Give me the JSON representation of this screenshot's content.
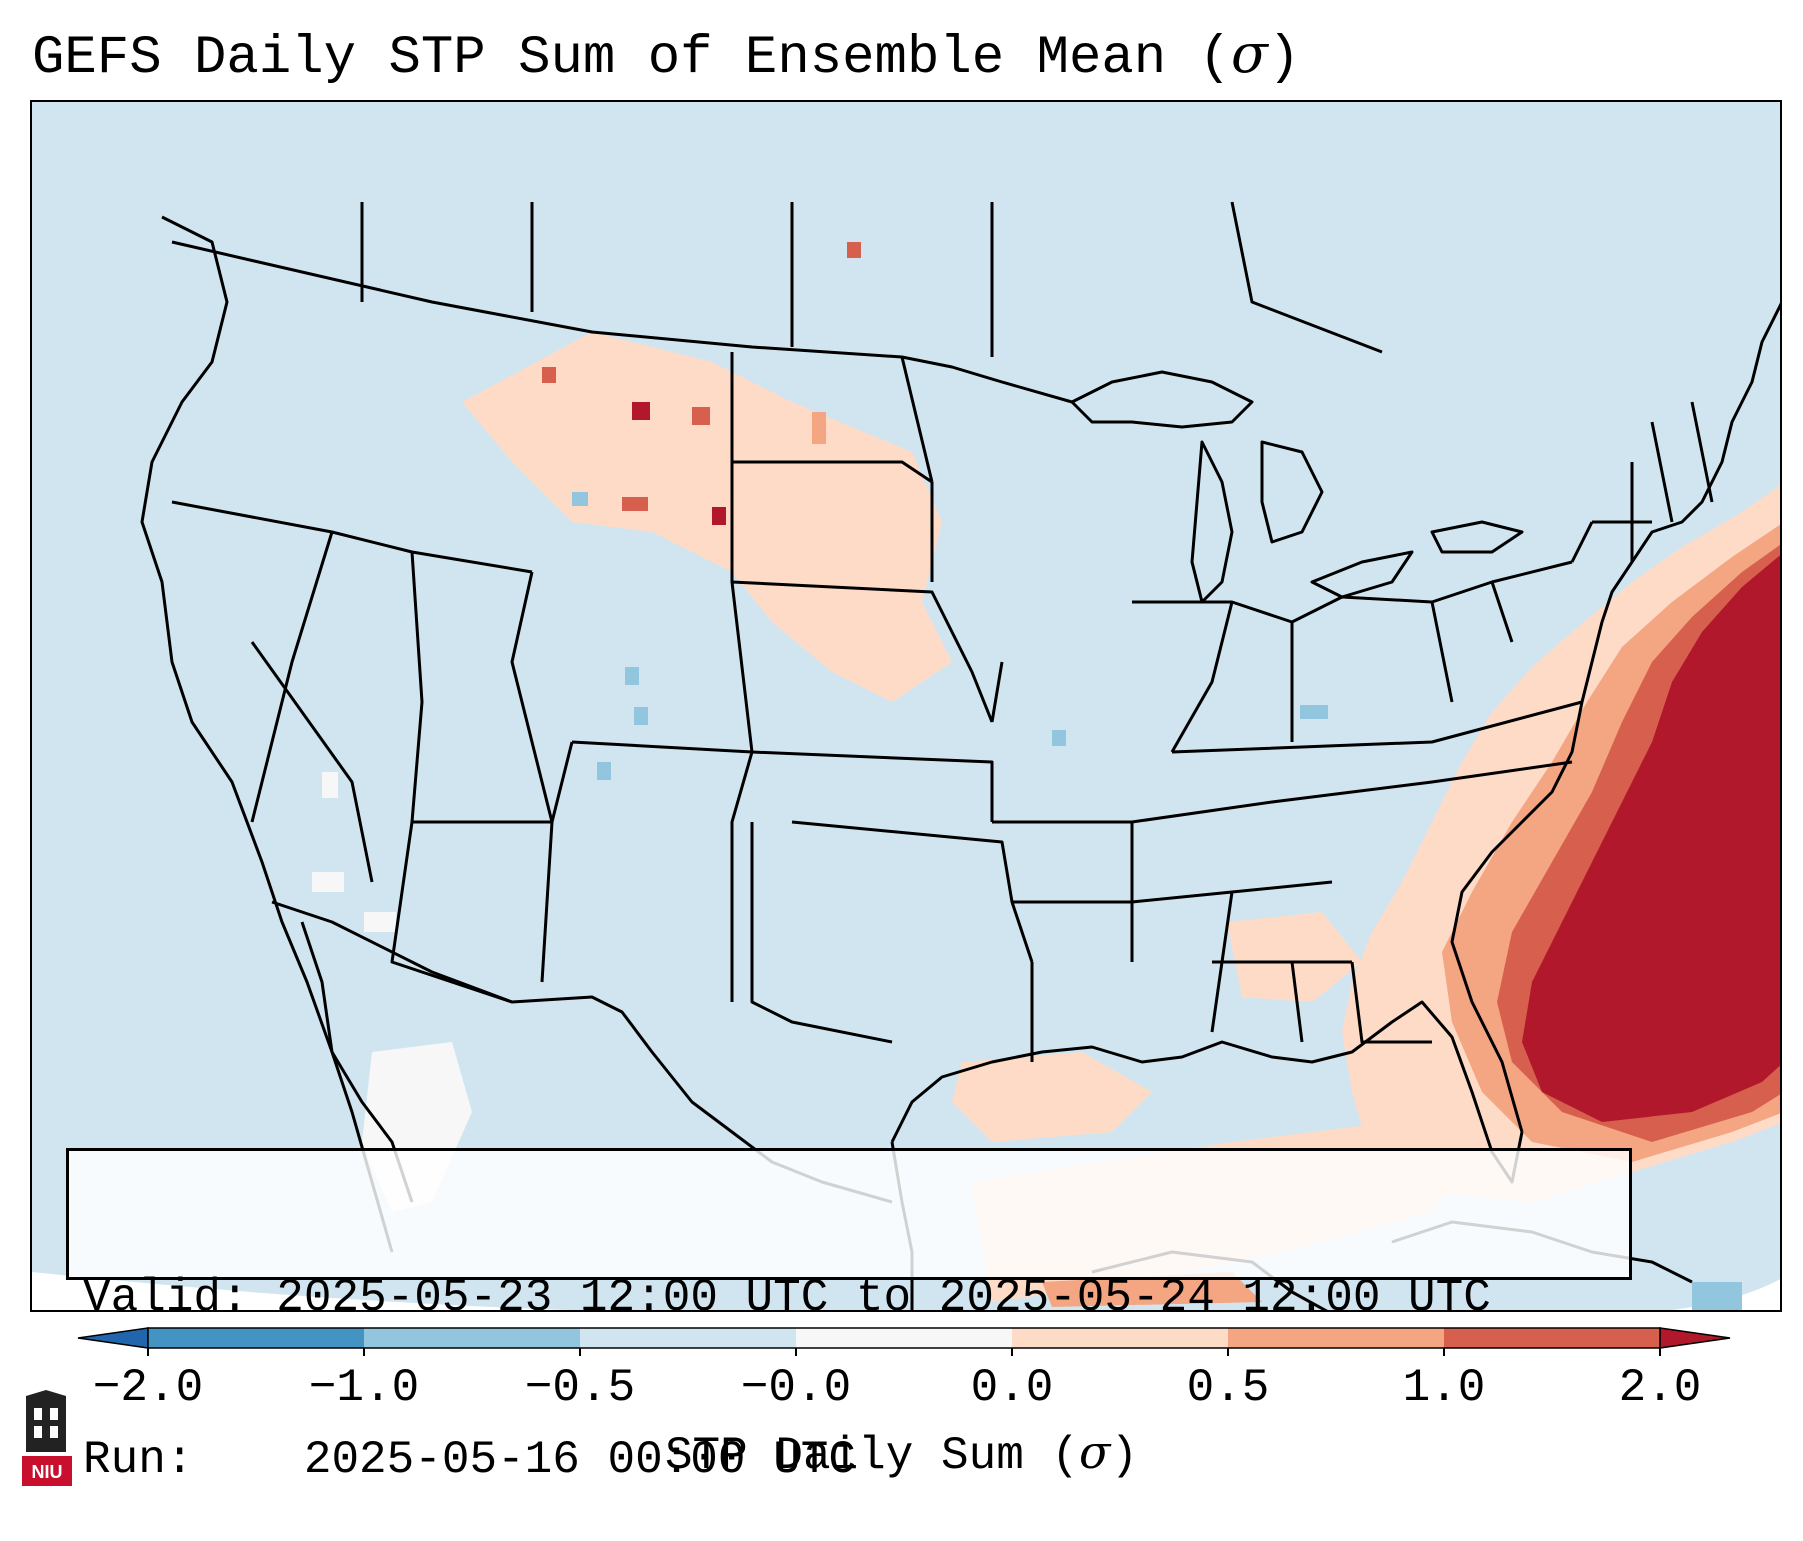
{
  "figure": {
    "title_text": "GEFS Daily STP Sum of Ensemble Mean (",
    "title_symbol": "σ",
    "title_close": ")"
  },
  "info_box": {
    "valid_label": "Valid:",
    "valid_value": "2025-05-23 12:00 UTC to 2025-05-24 12:00 UTC",
    "run_label": "Run:",
    "run_value": "2025-05-16 00:00 UTC"
  },
  "colorbar": {
    "label_text": "STP Daily Sum (",
    "label_symbol": "σ",
    "label_close": ")",
    "ticks": [
      "−2.0",
      "−1.0",
      "−0.5",
      "−0.0",
      "0.0",
      "0.5",
      "1.0",
      "2.0"
    ],
    "bins": [
      {
        "from": "−2.0",
        "to": "−1.0",
        "color": "#4393c3"
      },
      {
        "from": "−1.0",
        "to": "−0.5",
        "color": "#92c5de"
      },
      {
        "from": "−0.5",
        "to": "−0.0",
        "color": "#d1e5f0"
      },
      {
        "from": "−0.0",
        "to": "0.0",
        "color": "#f7f7f7"
      },
      {
        "from": "0.0",
        "to": "0.5",
        "color": "#fddbc7"
      },
      {
        "from": "0.5",
        "to": "1.0",
        "color": "#f4a582"
      },
      {
        "from": "1.0",
        "to": "2.0",
        "color": "#d6604d"
      }
    ],
    "extend_low_color": "#2166ac",
    "extend_high_color": "#b2182b"
  },
  "logo": {
    "text": "NIU",
    "color": "#c8102e"
  },
  "colors": {
    "background": "#d1e5f0",
    "neutral": "#f7f7f7",
    "light_red": "#fddbc7",
    "mid_red": "#f4a582",
    "red": "#d6604d",
    "dark_red": "#b2182b",
    "light_blue": "#92c5de"
  }
}
